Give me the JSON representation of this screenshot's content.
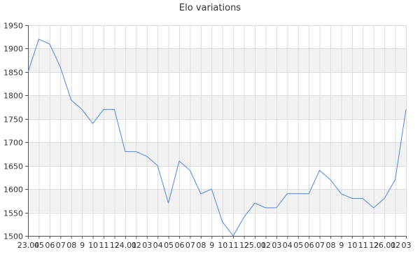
{
  "chart_data": {
    "type": "line",
    "title": "Elo variations",
    "xlabel": "",
    "ylabel": "",
    "ylim": [
      1500,
      1950
    ],
    "y_ticks": [
      1500,
      1550,
      1600,
      1650,
      1700,
      1750,
      1800,
      1850,
      1900,
      1950
    ],
    "x_tick_labels": [
      "23.04",
      "05",
      "06",
      "07",
      "08",
      "9",
      "10",
      "11",
      "12",
      "24.01",
      "02",
      "03",
      "04",
      "05",
      "06",
      "07",
      "08",
      "9",
      "10",
      "11",
      "12",
      "25.01",
      "02",
      "03",
      "04",
      "05",
      "06",
      "07",
      "08",
      "9",
      "10",
      "11",
      "12",
      "26.01",
      "02",
      "03"
    ],
    "grid": true,
    "legend": "none",
    "line_color": "#4f86e0",
    "band_color": "#f2f2f2",
    "series": [
      {
        "values": [
          1850,
          1920,
          1910,
          1860,
          1790,
          1770,
          1740,
          1770,
          1770,
          1680,
          1680,
          1670,
          1650,
          1570,
          1660,
          1640,
          1590,
          1600,
          1530,
          1500,
          1540,
          1570,
          1560,
          1560,
          1590,
          1590,
          1590,
          1640,
          1620,
          1590,
          1580,
          1580,
          1560,
          1580,
          1620,
          1770
        ]
      }
    ]
  }
}
